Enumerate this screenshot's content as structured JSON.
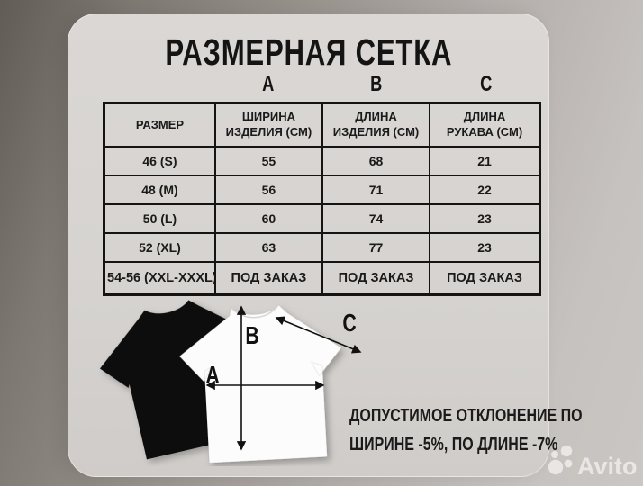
{
  "chart_data": {
    "type": "table",
    "title": "РАЗМЕРНАЯ СЕТКА",
    "columns": [
      "РАЗМЕР",
      "ШИРИНА ИЗДЕЛИЯ (СМ)",
      "ДЛИНА ИЗДЕЛИЯ (СМ)",
      "ДЛИНА РУКАВА (СМ)"
    ],
    "column_measure_letters": [
      "A",
      "B",
      "C"
    ],
    "rows": [
      [
        "46 (S)",
        "55",
        "68",
        "21"
      ],
      [
        "48 (M)",
        "56",
        "71",
        "22"
      ],
      [
        "50 (L)",
        "60",
        "74",
        "23"
      ],
      [
        "52 (XL)",
        "63",
        "77",
        "23"
      ],
      [
        "54-56 (XXL-XXXL)",
        "ПОД ЗАКАЗ",
        "ПОД ЗАКАЗ",
        "ПОД ЗАКАЗ"
      ]
    ]
  },
  "title": "РАЗМЕРНАЯ СЕТКА",
  "column_letters": [
    "A",
    "B",
    "C"
  ],
  "table": {
    "headers": [
      "РАЗМЕР",
      "ШИРИНА\nИЗДЕЛИЯ (СМ)",
      "ДЛИНА\nИЗДЕЛИЯ (СМ)",
      "ДЛИНА\nРУКАВА (СМ)"
    ],
    "rows": [
      [
        "46 (S)",
        "55",
        "68",
        "21"
      ],
      [
        "48 (M)",
        "56",
        "71",
        "22"
      ],
      [
        "50 (L)",
        "60",
        "74",
        "23"
      ],
      [
        "52 (XL)",
        "63",
        "77",
        "23"
      ],
      [
        "54-56 (XXL-XXXL)",
        "ПОД ЗАКАЗ",
        "ПОД ЗАКАЗ",
        "ПОД ЗАКАЗ"
      ]
    ]
  },
  "diagram": {
    "label_a": "A",
    "label_b": "B",
    "label_c": "C"
  },
  "note": {
    "line1": "ДОПУСТИМОЕ ОТКЛОНЕНИЕ ПО",
    "line2": "ШИРИНЕ -5%, ПО ДЛИНЕ -7%"
  },
  "watermark": {
    "brand": "Avito"
  },
  "colors": {
    "card_bg": "#d6d3d0",
    "background_dark": "#615c56",
    "background_light": "#cac6c3",
    "text": "#141414",
    "shirt_black": "#0d0d0d",
    "shirt_white": "#fcfcfc",
    "watermark": "#ffffff"
  }
}
